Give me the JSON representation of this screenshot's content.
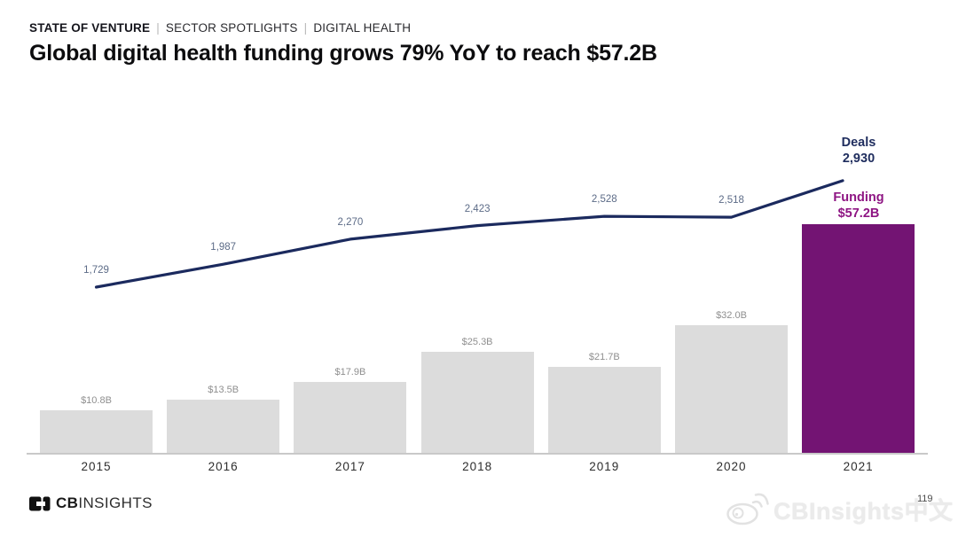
{
  "header": {
    "kicker": {
      "report": "STATE OF VENTURE",
      "separator": "|",
      "section": "SECTOR SPOTLIGHTS",
      "topic": "DIGITAL HEALTH"
    },
    "title": "Global digital health funding grows 79% YoY to reach $57.2B"
  },
  "chart_data": {
    "type": "bar",
    "subtype": "bar-with-line-overlay",
    "categories": [
      "2015",
      "2016",
      "2017",
      "2018",
      "2019",
      "2020",
      "2021"
    ],
    "series": [
      {
        "name": "Funding",
        "type": "bar",
        "unit": "USD billions",
        "values": [
          10.8,
          13.5,
          17.9,
          25.3,
          21.7,
          32.0,
          57.2
        ],
        "labels": [
          "$10.8B",
          "$13.5B",
          "$17.9B",
          "$25.3B",
          "$21.7B",
          "$32.0B",
          "$57.2B"
        ]
      },
      {
        "name": "Deals",
        "type": "line",
        "values": [
          1729,
          1987,
          2270,
          2423,
          2528,
          2518,
          2930
        ],
        "labels": [
          "1,729",
          "1,987",
          "2,270",
          "2,423",
          "2,528",
          "2,518",
          "2,930"
        ]
      }
    ],
    "annotations": {
      "deals_title": "Deals",
      "deals_value": "2,930",
      "funding_title": "Funding",
      "funding_value": "$57.2B"
    },
    "legend_position": "end-of-series labels, top right",
    "grid": false,
    "colors": {
      "bar": "#dcdcdc",
      "bar_highlight": "#731473",
      "line": "#1b2a5e",
      "bar_value_label": "#8f8f8f",
      "line_value_label": "#5c6b87",
      "deals_annotation": "#1f2d5e",
      "funding_annotation": "#8e1583",
      "axis_line": "#c9c9c9",
      "year_label": "#2d2d2d"
    }
  },
  "footer": {
    "logo_cb": "CB",
    "logo_insights": "INSIGHTS",
    "page_number": "119"
  },
  "watermark": {
    "text": "CBInsights中文"
  }
}
